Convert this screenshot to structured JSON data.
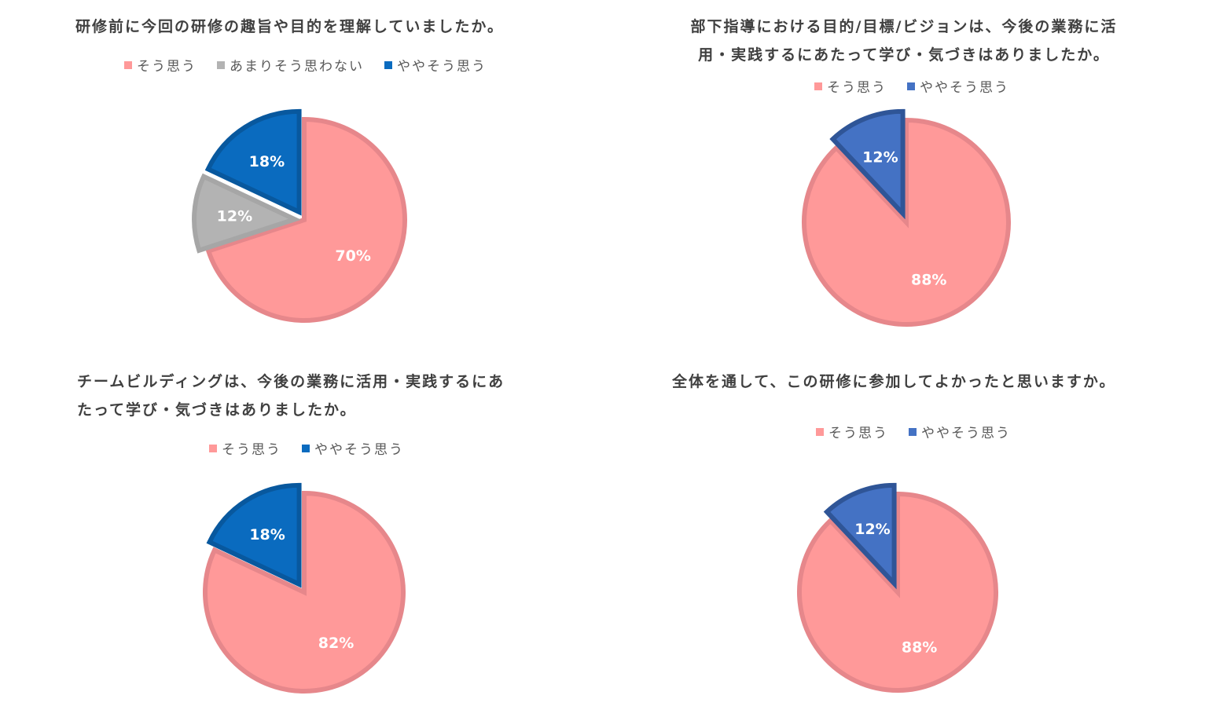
{
  "chart_data": [
    {
      "type": "pie",
      "title_lines": [
        "研修前に今回の研修の趣旨や目的を理解していましたか。"
      ],
      "legend": [
        {
          "label": "そう思う",
          "color": "#ff9999"
        },
        {
          "label": "あまりそう思わない",
          "color": "#b3b3b3"
        },
        {
          "label": "ややそう思う",
          "color": "#0a6bbf"
        }
      ],
      "slices": [
        {
          "label": "そう思う",
          "value": 70,
          "display": "70%",
          "color": "#ff9999",
          "stroke": "#e6878b"
        },
        {
          "label": "あまりそう思わない",
          "value": 12,
          "display": "12%",
          "color": "#b3b3b3",
          "stroke": "#a6a6a6"
        },
        {
          "label": "ややそう思う",
          "value": 18,
          "display": "18%",
          "color": "#0a6bbf",
          "stroke": "#08589e"
        }
      ],
      "exploded": [
        "あまりそう思わない",
        "ややそう思う"
      ]
    },
    {
      "type": "pie",
      "title_lines": [
        "部下指導における目的/目標/ビジョンは、今後の業務に活",
        "用・実践するにあたって学び・気づきはありましたか。"
      ],
      "legend": [
        {
          "label": "そう思う",
          "color": "#ff9999"
        },
        {
          "label": "ややそう思う",
          "color": "#4472c4"
        }
      ],
      "slices": [
        {
          "label": "そう思う",
          "value": 88,
          "display": "88%",
          "color": "#ff9999",
          "stroke": "#e6878b"
        },
        {
          "label": "ややそう思う",
          "value": 12,
          "display": "12%",
          "color": "#4472c4",
          "stroke": "#2f5597"
        }
      ],
      "exploded": [
        "ややそう思う"
      ]
    },
    {
      "type": "pie",
      "title_lines": [
        "チームビルディングは、今後の業務に活用・実践するにあ",
        "たって学び・気づきはありましたか。"
      ],
      "legend": [
        {
          "label": "そう思う",
          "color": "#ff9999"
        },
        {
          "label": "ややそう思う",
          "color": "#0a6bbf"
        }
      ],
      "slices": [
        {
          "label": "そう思う",
          "value": 82,
          "display": "82%",
          "color": "#ff9999",
          "stroke": "#e6878b"
        },
        {
          "label": "ややそう思う",
          "value": 18,
          "display": "18%",
          "color": "#0a6bbf",
          "stroke": "#08589e"
        }
      ],
      "exploded": [
        "ややそう思う"
      ]
    },
    {
      "type": "pie",
      "title_lines": [
        "全体を通して、この研修に参加してよかったと思いますか。"
      ],
      "legend": [
        {
          "label": "そう思う",
          "color": "#ff9999"
        },
        {
          "label": "ややそう思う",
          "color": "#4472c4"
        }
      ],
      "slices": [
        {
          "label": "そう思う",
          "value": 88,
          "display": "88%",
          "color": "#ff9999",
          "stroke": "#e6878b"
        },
        {
          "label": "ややそう思う",
          "value": 12,
          "display": "12%",
          "color": "#4472c4",
          "stroke": "#2f5597"
        }
      ],
      "exploded": [
        "ややそう思う"
      ]
    }
  ]
}
